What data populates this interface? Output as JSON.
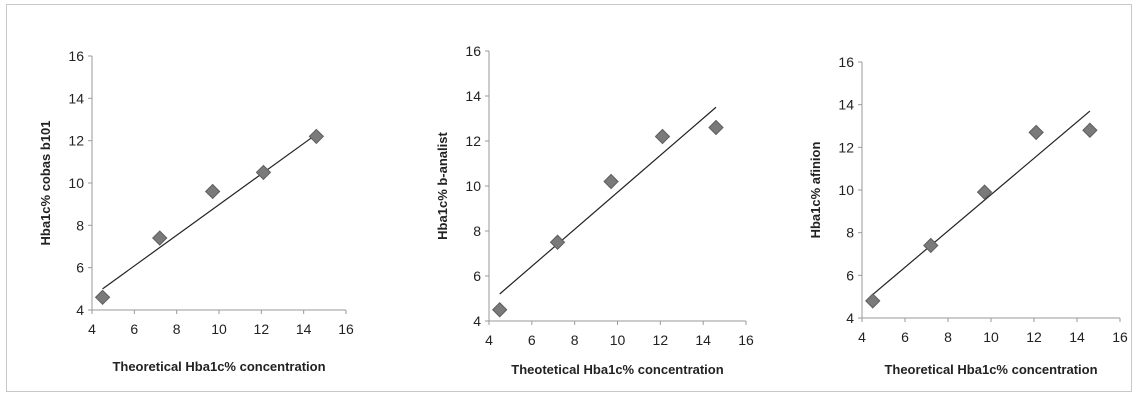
{
  "chart_data": [
    {
      "type": "scatter",
      "xlabel": "Theoretical Hba1c% concentration",
      "ylabel": "Hba1c% cobas b101",
      "xlim": [
        4,
        16
      ],
      "ylim": [
        4,
        16
      ],
      "xticks": [
        4,
        6,
        8,
        10,
        12,
        14,
        16
      ],
      "yticks": [
        4,
        6,
        8,
        10,
        12,
        14,
        16
      ],
      "points": [
        {
          "x": 4.5,
          "y": 4.6
        },
        {
          "x": 7.2,
          "y": 7.4
        },
        {
          "x": 9.7,
          "y": 9.6
        },
        {
          "x": 12.1,
          "y": 10.5
        },
        {
          "x": 14.6,
          "y": 12.2
        }
      ],
      "trendline": [
        {
          "x": 4.5,
          "y": 5.0
        },
        {
          "x": 14.6,
          "y": 12.3
        }
      ],
      "marker_color": "#7a7a7a"
    },
    {
      "type": "scatter",
      "xlabel": "Theotetical Hba1c% concentration",
      "ylabel": "Hba1c% b-analist",
      "xlim": [
        4,
        16
      ],
      "ylim": [
        4,
        16
      ],
      "xticks": [
        4,
        6,
        8,
        10,
        12,
        14,
        16
      ],
      "yticks": [
        4,
        6,
        8,
        10,
        12,
        14,
        16
      ],
      "points": [
        {
          "x": 4.5,
          "y": 4.5
        },
        {
          "x": 7.2,
          "y": 7.5
        },
        {
          "x": 9.7,
          "y": 10.2
        },
        {
          "x": 12.1,
          "y": 12.2
        },
        {
          "x": 14.6,
          "y": 12.6
        }
      ],
      "trendline": [
        {
          "x": 4.5,
          "y": 5.2
        },
        {
          "x": 14.6,
          "y": 13.5
        }
      ],
      "marker_color": "#7a7a7a"
    },
    {
      "type": "scatter",
      "xlabel": "Theoretical Hba1c% concentration",
      "ylabel": "Hba1c% afinion",
      "xlim": [
        4,
        16
      ],
      "ylim": [
        4,
        16
      ],
      "xticks": [
        4,
        6,
        8,
        10,
        12,
        14,
        16
      ],
      "yticks": [
        4,
        6,
        8,
        10,
        12,
        14,
        16
      ],
      "points": [
        {
          "x": 4.5,
          "y": 4.8
        },
        {
          "x": 7.2,
          "y": 7.4
        },
        {
          "x": 9.7,
          "y": 9.9
        },
        {
          "x": 12.1,
          "y": 12.7
        },
        {
          "x": 14.6,
          "y": 12.8
        }
      ],
      "trendline": [
        {
          "x": 4.5,
          "y": 5.1
        },
        {
          "x": 14.6,
          "y": 13.7
        }
      ],
      "marker_color": "#7a7a7a"
    }
  ]
}
